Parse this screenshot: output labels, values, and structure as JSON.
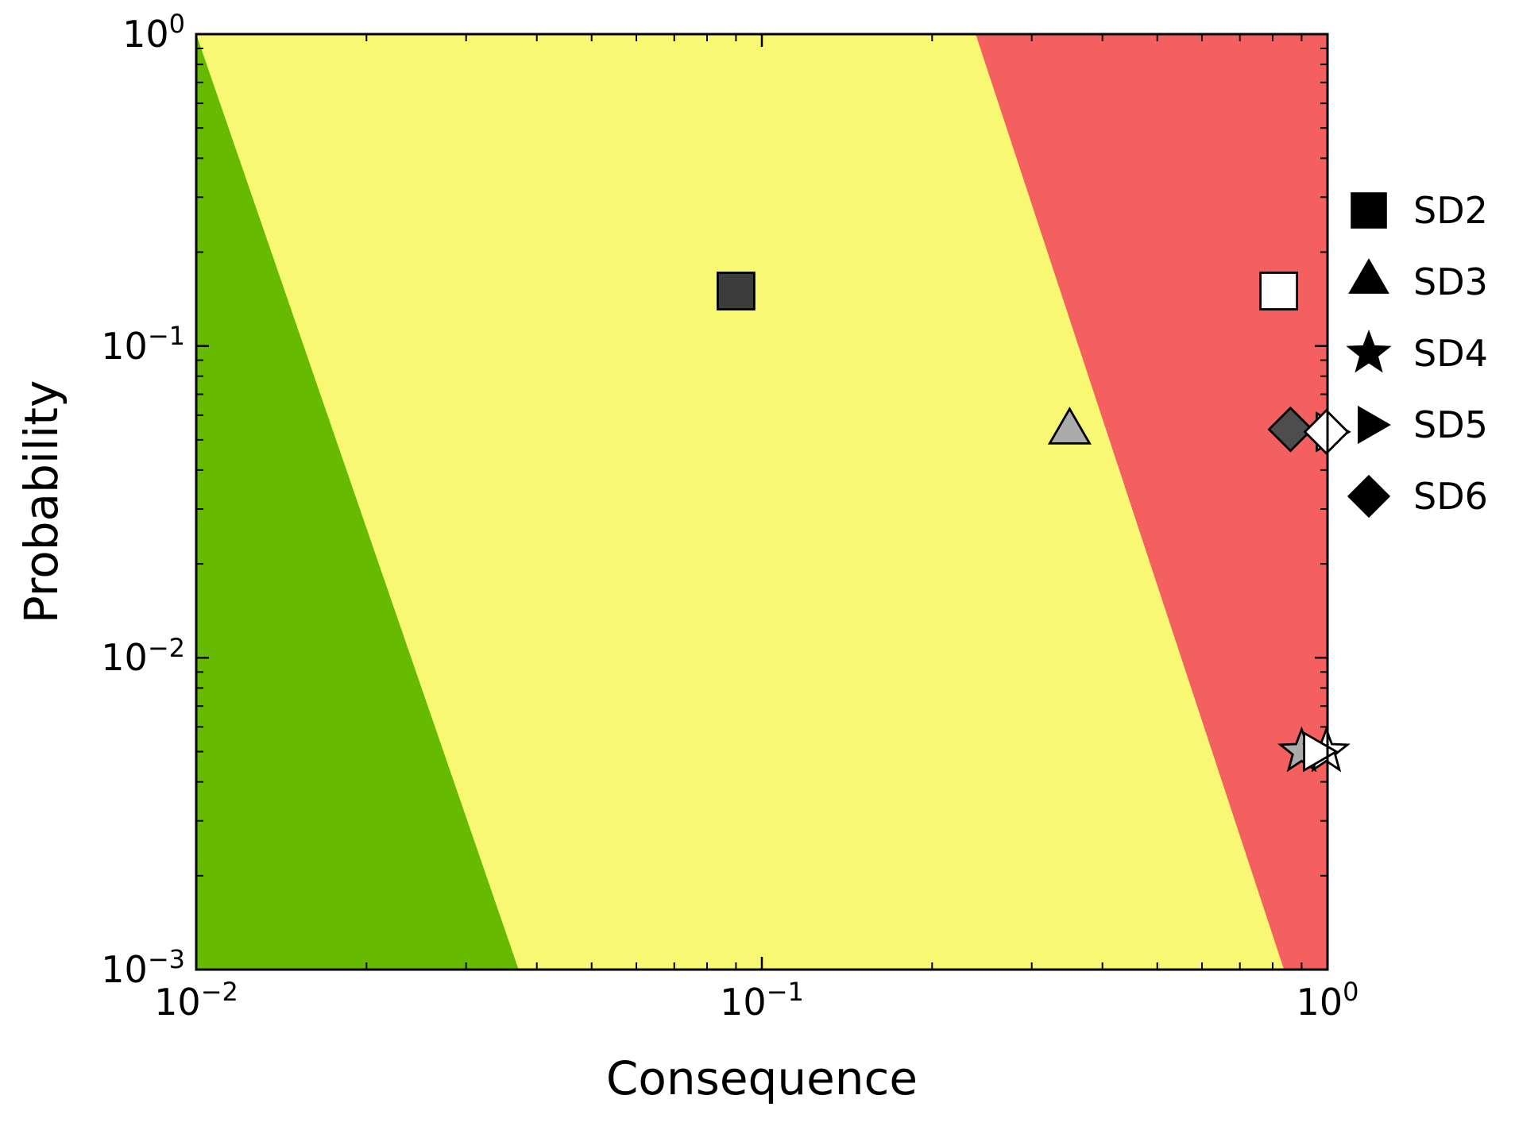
{
  "chart_data": {
    "type": "scatter",
    "title": "",
    "xlabel": "Consequence",
    "ylabel": "Probability",
    "x_scale": "log",
    "y_scale": "log",
    "xlim": [
      0.01,
      1.0
    ],
    "ylim": [
      0.001,
      1.0
    ],
    "grid": false,
    "x_major_ticks": [
      {
        "value": 0.01,
        "base": "10",
        "exp": "−2"
      },
      {
        "value": 0.1,
        "base": "10",
        "exp": "−1"
      },
      {
        "value": 1.0,
        "base": "10",
        "exp": "0"
      }
    ],
    "y_major_ticks": [
      {
        "value": 1.0,
        "base": "10",
        "exp": "0"
      },
      {
        "value": 0.1,
        "base": "10",
        "exp": "−1"
      },
      {
        "value": 0.01,
        "base": "10",
        "exp": "−2"
      },
      {
        "value": 0.001,
        "base": "10",
        "exp": "−3"
      }
    ],
    "regions": [
      {
        "name": "medium-risk-yellow",
        "color": "#f8f873",
        "polygon_log": [
          [
            -2,
            0
          ],
          [
            0,
            0
          ],
          [
            0,
            -3
          ],
          [
            -2,
            -3
          ]
        ]
      },
      {
        "name": "low-risk-green",
        "color": "#66bb00",
        "polygon_log": [
          [
            -2,
            0
          ],
          [
            -1.43,
            -3
          ],
          [
            -2,
            -3
          ]
        ]
      },
      {
        "name": "high-risk-red",
        "color": "#f4605f",
        "polygon_log": [
          [
            -0.622,
            0
          ],
          [
            0,
            0
          ],
          [
            0,
            -3
          ],
          [
            -0.077,
            -3
          ]
        ]
      }
    ],
    "series": [
      {
        "name": "SD2",
        "marker": "square",
        "points": [
          {
            "c": 0.09,
            "p": 0.15,
            "fill": "#3c3c3c"
          },
          {
            "c": 0.82,
            "p": 0.15,
            "fill": "#ffffff"
          }
        ]
      },
      {
        "name": "SD3",
        "marker": "triangle-up",
        "points": [
          {
            "c": 0.35,
            "p": 0.053,
            "fill": "#ababab"
          }
        ]
      },
      {
        "name": "SD4",
        "marker": "star",
        "points": [
          {
            "c": 0.9,
            "p": 0.005,
            "fill": "#ababab"
          },
          {
            "c": 0.995,
            "p": 0.005,
            "fill": "#ffffff"
          }
        ]
      },
      {
        "name": "SD5",
        "marker": "triangle-right",
        "points": [
          {
            "c": 1.0,
            "p": 0.053,
            "fill": "#ffffff"
          },
          {
            "c": 0.95,
            "p": 0.005,
            "fill": "#ffffff"
          }
        ]
      },
      {
        "name": "SD6",
        "marker": "diamond",
        "points": [
          {
            "c": 0.86,
            "p": 0.054,
            "fill": "#4d4d4d"
          },
          {
            "c": 0.995,
            "p": 0.053,
            "fill": "#ffffff"
          }
        ]
      }
    ],
    "legend": {
      "position": "upper-right-outside",
      "marker_color": "#000000",
      "items": [
        {
          "label": "SD2",
          "marker": "square"
        },
        {
          "label": "SD3",
          "marker": "triangle-up"
        },
        {
          "label": "SD4",
          "marker": "star"
        },
        {
          "label": "SD5",
          "marker": "triangle-right"
        },
        {
          "label": "SD6",
          "marker": "diamond"
        }
      ]
    }
  }
}
